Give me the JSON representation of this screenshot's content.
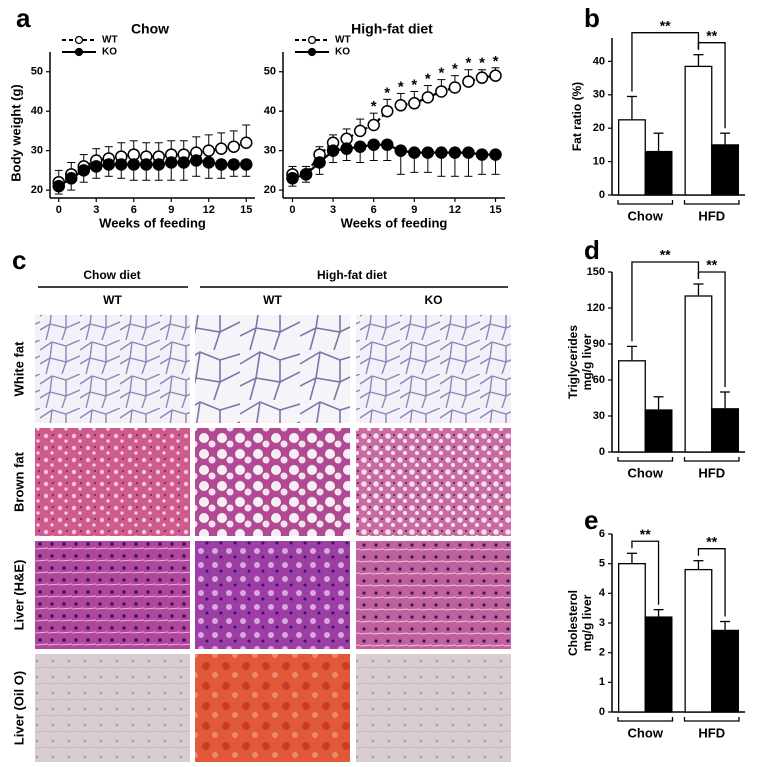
{
  "chart_data": [
    {
      "type": "line",
      "panel": "a",
      "title": "Chow",
      "xlabel": "Weeks of feeding",
      "ylabel": "Body weight (g)",
      "x": [
        0,
        1,
        2,
        3,
        4,
        5,
        6,
        7,
        8,
        9,
        10,
        11,
        12,
        13,
        14,
        15
      ],
      "xlim": [
        -0.7,
        15.7
      ],
      "xticks": [
        0,
        3,
        6,
        9,
        12,
        15
      ],
      "ylim": [
        18,
        55
      ],
      "yticks": [
        20,
        30,
        40,
        50
      ],
      "legend": "upper left",
      "series": [
        {
          "name": "WT",
          "color": "#000000",
          "fill": "#ffffff",
          "line_style": "dashed",
          "values": [
            22,
            24,
            26,
            27.5,
            28,
            28.5,
            29,
            28.5,
            28.5,
            29,
            29,
            29.5,
            30,
            30.5,
            31,
            32
          ],
          "errors": [
            3,
            3,
            3,
            3,
            3,
            3.5,
            3.5,
            3.5,
            3.5,
            3.5,
            3.5,
            4,
            4,
            4,
            4,
            4.5
          ]
        },
        {
          "name": "KO",
          "color": "#000000",
          "fill": "#000000",
          "line_style": "solid",
          "values": [
            21,
            23,
            25,
            26,
            26.5,
            26.5,
            26.5,
            26.5,
            26.5,
            27,
            27,
            27.5,
            27,
            26.5,
            26.5,
            26.5
          ],
          "errors": [
            2,
            3,
            3,
            3,
            3,
            3.5,
            4,
            4,
            4,
            4.5,
            4.5,
            4,
            4,
            3.5,
            3,
            3
          ]
        }
      ]
    },
    {
      "type": "line",
      "title": "High-fat diet",
      "xlabel": "Weeks of feeding",
      "x": [
        0,
        1,
        2,
        3,
        4,
        5,
        6,
        7,
        8,
        9,
        10,
        11,
        12,
        13,
        14,
        15
      ],
      "xlim": [
        -0.7,
        15.7
      ],
      "xticks": [
        0,
        3,
        6,
        9,
        12,
        15
      ],
      "ylim": [
        18,
        55
      ],
      "yticks": [
        20,
        30,
        40,
        50
      ],
      "legend": "upper left",
      "significance_x": [
        6,
        7,
        8,
        9,
        10,
        11,
        12,
        13,
        14,
        15
      ],
      "significance_label": "*",
      "series": [
        {
          "name": "WT",
          "color": "#000000",
          "fill": "#ffffff",
          "line_style": "dashed",
          "values": [
            24,
            24,
            29,
            32,
            33,
            35,
            36.5,
            40,
            41.5,
            42,
            43.5,
            45,
            46,
            47.5,
            48.5,
            49
          ],
          "errors": [
            2,
            2,
            2,
            2,
            2.5,
            3,
            3,
            3,
            3,
            3,
            3,
            3,
            3,
            3,
            2,
            2
          ]
        },
        {
          "name": "KO",
          "color": "#000000",
          "fill": "#000000",
          "line_style": "solid",
          "values": [
            23,
            24,
            27,
            30,
            30.5,
            31,
            31.5,
            31.5,
            30,
            29.5,
            29.5,
            29.5,
            29.5,
            29.5,
            29,
            29
          ],
          "errors": [
            2,
            2,
            3,
            3,
            3,
            4,
            4,
            4,
            6,
            5,
            5,
            6,
            6,
            6,
            5,
            5
          ]
        }
      ]
    },
    {
      "type": "bar",
      "panel": "b",
      "ylabel": [
        "Fat ratio (%)"
      ],
      "categories": [
        "Chow",
        "HFD"
      ],
      "ylim": [
        0,
        47
      ],
      "yticks": [
        0,
        10,
        20,
        30,
        40
      ],
      "annotations": [
        "**",
        "**"
      ],
      "series": [
        {
          "color": "#000000",
          "fill": "#ffffff",
          "values": [
            22.5,
            38.5
          ],
          "errors": [
            7,
            3.5
          ]
        },
        {
          "color": "#000000",
          "fill": "#000000",
          "values": [
            13,
            15
          ],
          "errors": [
            5.5,
            3.5
          ]
        }
      ]
    },
    {
      "type": "bar",
      "panel": "d",
      "ylabel": [
        "Triglycerides",
        "mg/g liver"
      ],
      "categories": [
        "Chow",
        "HFD"
      ],
      "ylim": [
        0,
        150
      ],
      "yticks": [
        0,
        30,
        60,
        90,
        120,
        150
      ],
      "annotations": [
        "**",
        "**"
      ],
      "series": [
        {
          "color": "#000000",
          "fill": "#ffffff",
          "values": [
            76,
            130
          ],
          "errors": [
            12,
            10
          ]
        },
        {
          "color": "#000000",
          "fill": "#000000",
          "values": [
            35,
            36
          ],
          "errors": [
            11,
            14
          ]
        }
      ]
    },
    {
      "type": "bar",
      "panel": "e",
      "ylabel": [
        "Cholesterol",
        "mg/g liver"
      ],
      "categories": [
        "Chow",
        "HFD"
      ],
      "ylim": [
        0,
        6
      ],
      "yticks": [
        0,
        1,
        2,
        3,
        4,
        5,
        6
      ],
      "annotations": [
        "**",
        "**"
      ],
      "series": [
        {
          "color": "#000000",
          "fill": "#ffffff",
          "values": [
            5.0,
            4.8
          ],
          "errors": [
            0.35,
            0.3
          ]
        },
        {
          "color": "#000000",
          "fill": "#000000",
          "values": [
            3.2,
            2.75
          ],
          "errors": [
            0.25,
            0.3
          ]
        }
      ]
    }
  ],
  "micrographs": {
    "panel": "c",
    "groups": [
      "Chow diet",
      "High-fat diet"
    ],
    "columns": [
      "WT",
      "WT",
      "KO"
    ],
    "rows": [
      "White fat",
      "Brown fat",
      "Liver (H&E)",
      "Liver (Oil O)"
    ]
  }
}
